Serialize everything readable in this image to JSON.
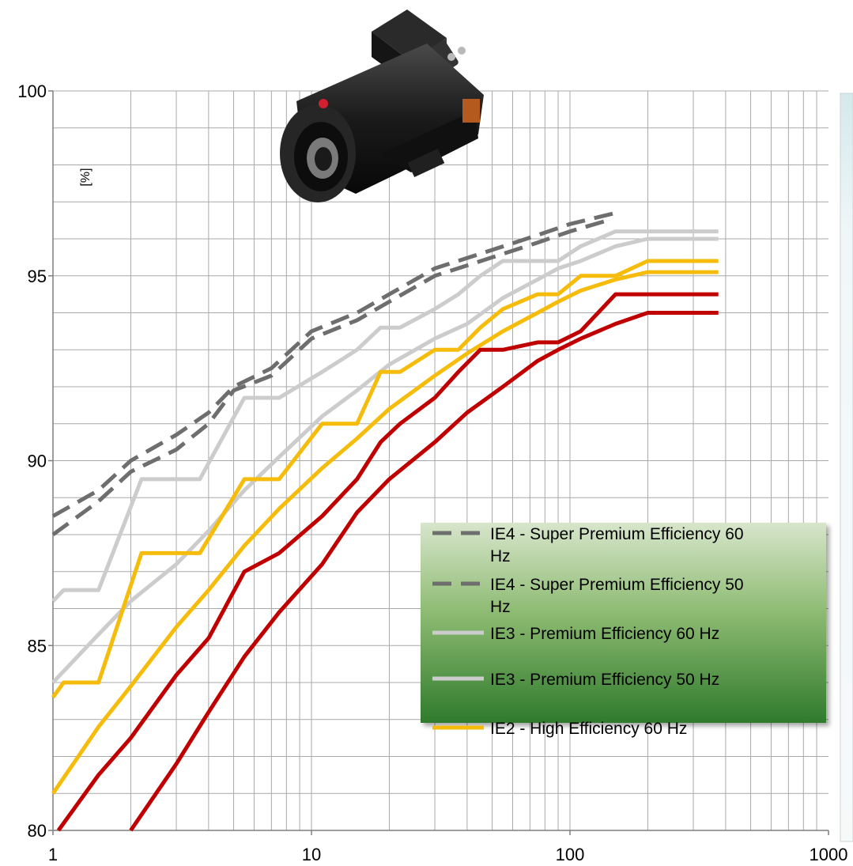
{
  "chart_data": {
    "type": "line",
    "title": "",
    "xlabel": "",
    "ylabel": "[%]",
    "xscale": "log",
    "xlim": [
      1,
      1000
    ],
    "ylim": [
      80,
      100
    ],
    "grid": true,
    "legend_position": "right",
    "x_ticks": [
      {
        "value": 1,
        "label": "1"
      },
      {
        "value": 10,
        "label": "10"
      },
      {
        "value": 100,
        "label": "100"
      },
      {
        "value": 1000,
        "label": "1000"
      }
    ],
    "y_ticks": [
      {
        "value": 80,
        "label": "80"
      },
      {
        "value": 85,
        "label": "85"
      },
      {
        "value": 90,
        "label": "90"
      },
      {
        "value": 95,
        "label": "95"
      },
      {
        "value": 100,
        "label": "100"
      }
    ],
    "series": [
      {
        "name": "IE4 - Super Premium Efficiency 60 Hz",
        "color": "#6e6e6e",
        "dashed": true,
        "legend": true,
        "points": [
          [
            1,
            88.5
          ],
          [
            1.5,
            89.2
          ],
          [
            2,
            90.0
          ],
          [
            3,
            90.7
          ],
          [
            4,
            91.3
          ],
          [
            5,
            92.0
          ],
          [
            7,
            92.5
          ],
          [
            10,
            93.5
          ],
          [
            15,
            94.0
          ],
          [
            20,
            94.5
          ],
          [
            30,
            95.2
          ],
          [
            50,
            95.7
          ],
          [
            75,
            96.1
          ],
          [
            100,
            96.4
          ],
          [
            150,
            96.7
          ]
        ]
      },
      {
        "name": "IE4 - Super Premium Efficiency 50 Hz",
        "color": "#6e6e6e",
        "dashed": true,
        "legend": true,
        "points": [
          [
            1,
            88.0
          ],
          [
            1.5,
            88.9
          ],
          [
            2,
            89.7
          ],
          [
            3,
            90.3
          ],
          [
            4,
            91.0
          ],
          [
            5,
            91.9
          ],
          [
            7,
            92.3
          ],
          [
            10,
            93.3
          ],
          [
            15,
            93.8
          ],
          [
            20,
            94.3
          ],
          [
            30,
            95.0
          ],
          [
            50,
            95.5
          ],
          [
            75,
            95.9
          ],
          [
            100,
            96.2
          ],
          [
            140,
            96.5
          ]
        ]
      },
      {
        "name": "IE3 - Premium Efficiency 60 Hz",
        "color": "#cccccc",
        "dashed": false,
        "legend": true,
        "points": [
          [
            1,
            86.2
          ],
          [
            1.1,
            86.5
          ],
          [
            1.5,
            86.5
          ],
          [
            2.2,
            89.5
          ],
          [
            3.7,
            89.5
          ],
          [
            5.5,
            91.7
          ],
          [
            7.5,
            91.7
          ],
          [
            11,
            92.4
          ],
          [
            15,
            93.0
          ],
          [
            18.5,
            93.6
          ],
          [
            22,
            93.6
          ],
          [
            30,
            94.1
          ],
          [
            37,
            94.5
          ],
          [
            45,
            95.0
          ],
          [
            55,
            95.4
          ],
          [
            75,
            95.4
          ],
          [
            90,
            95.4
          ],
          [
            110,
            95.8
          ],
          [
            150,
            96.2
          ],
          [
            200,
            96.2
          ],
          [
            375,
            96.2
          ]
        ]
      },
      {
        "name": "IE3 - Premium Efficiency 50 Hz",
        "color": "#cccccc",
        "dashed": false,
        "legend": true,
        "points": [
          [
            1,
            84.0
          ],
          [
            1.5,
            85.3
          ],
          [
            2,
            86.2
          ],
          [
            3,
            87.2
          ],
          [
            4,
            88.1
          ],
          [
            5.5,
            89.2
          ],
          [
            7.5,
            90.1
          ],
          [
            11,
            91.2
          ],
          [
            15,
            91.9
          ],
          [
            20,
            92.6
          ],
          [
            30,
            93.3
          ],
          [
            40,
            93.7
          ],
          [
            55,
            94.4
          ],
          [
            75,
            94.9
          ],
          [
            90,
            95.2
          ],
          [
            110,
            95.4
          ],
          [
            150,
            95.8
          ],
          [
            200,
            96.0
          ],
          [
            375,
            96.0
          ]
        ]
      },
      {
        "name": "IE2 - High Efficiency 60 Hz",
        "color": "#f6bc0c",
        "dashed": false,
        "legend": true,
        "points": [
          [
            1,
            83.6
          ],
          [
            1.1,
            84.0
          ],
          [
            1.5,
            84.0
          ],
          [
            2.2,
            87.5
          ],
          [
            3.7,
            87.5
          ],
          [
            5.5,
            89.5
          ],
          [
            7.5,
            89.5
          ],
          [
            11,
            91.0
          ],
          [
            15,
            91.0
          ],
          [
            18.5,
            92.4
          ],
          [
            22,
            92.4
          ],
          [
            30,
            93.0
          ],
          [
            37,
            93.0
          ],
          [
            45,
            93.6
          ],
          [
            55,
            94.1
          ],
          [
            75,
            94.5
          ],
          [
            90,
            94.5
          ],
          [
            110,
            95.0
          ],
          [
            150,
            95.0
          ],
          [
            200,
            95.4
          ],
          [
            375,
            95.4
          ]
        ]
      },
      {
        "name": "",
        "color": "#f6bc0c",
        "dashed": false,
        "legend": false,
        "points": [
          [
            1,
            81.0
          ],
          [
            1.5,
            82.8
          ],
          [
            2,
            83.9
          ],
          [
            3,
            85.5
          ],
          [
            4,
            86.5
          ],
          [
            5.5,
            87.7
          ],
          [
            7.5,
            88.7
          ],
          [
            11,
            89.8
          ],
          [
            15,
            90.6
          ],
          [
            20,
            91.4
          ],
          [
            30,
            92.3
          ],
          [
            40,
            92.9
          ],
          [
            55,
            93.5
          ],
          [
            75,
            94.0
          ],
          [
            90,
            94.3
          ],
          [
            110,
            94.6
          ],
          [
            150,
            94.9
          ],
          [
            200,
            95.1
          ],
          [
            375,
            95.1
          ]
        ]
      },
      {
        "name": "",
        "color": "#c00000",
        "dashed": false,
        "legend": false,
        "points": [
          [
            1.05,
            80.0
          ],
          [
            1.5,
            81.5
          ],
          [
            2,
            82.5
          ],
          [
            3,
            84.2
          ],
          [
            4,
            85.2
          ],
          [
            5.5,
            87.0
          ],
          [
            7.5,
            87.5
          ],
          [
            11,
            88.5
          ],
          [
            15,
            89.5
          ],
          [
            18.5,
            90.5
          ],
          [
            22,
            91.0
          ],
          [
            30,
            91.7
          ],
          [
            37,
            92.4
          ],
          [
            45,
            93.0
          ],
          [
            55,
            93.0
          ],
          [
            75,
            93.2
          ],
          [
            90,
            93.2
          ],
          [
            110,
            93.5
          ],
          [
            150,
            94.5
          ],
          [
            200,
            94.5
          ],
          [
            375,
            94.5
          ]
        ]
      },
      {
        "name": "",
        "color": "#c00000",
        "dashed": false,
        "legend": false,
        "points": [
          [
            2.0,
            80.0
          ],
          [
            3,
            81.8
          ],
          [
            4,
            83.2
          ],
          [
            5.5,
            84.7
          ],
          [
            7.5,
            85.9
          ],
          [
            11,
            87.2
          ],
          [
            15,
            88.6
          ],
          [
            20,
            89.5
          ],
          [
            30,
            90.5
          ],
          [
            40,
            91.3
          ],
          [
            55,
            92.0
          ],
          [
            75,
            92.7
          ],
          [
            90,
            93.0
          ],
          [
            110,
            93.3
          ],
          [
            150,
            93.7
          ],
          [
            200,
            94.0
          ],
          [
            375,
            94.0
          ]
        ]
      }
    ]
  }
}
